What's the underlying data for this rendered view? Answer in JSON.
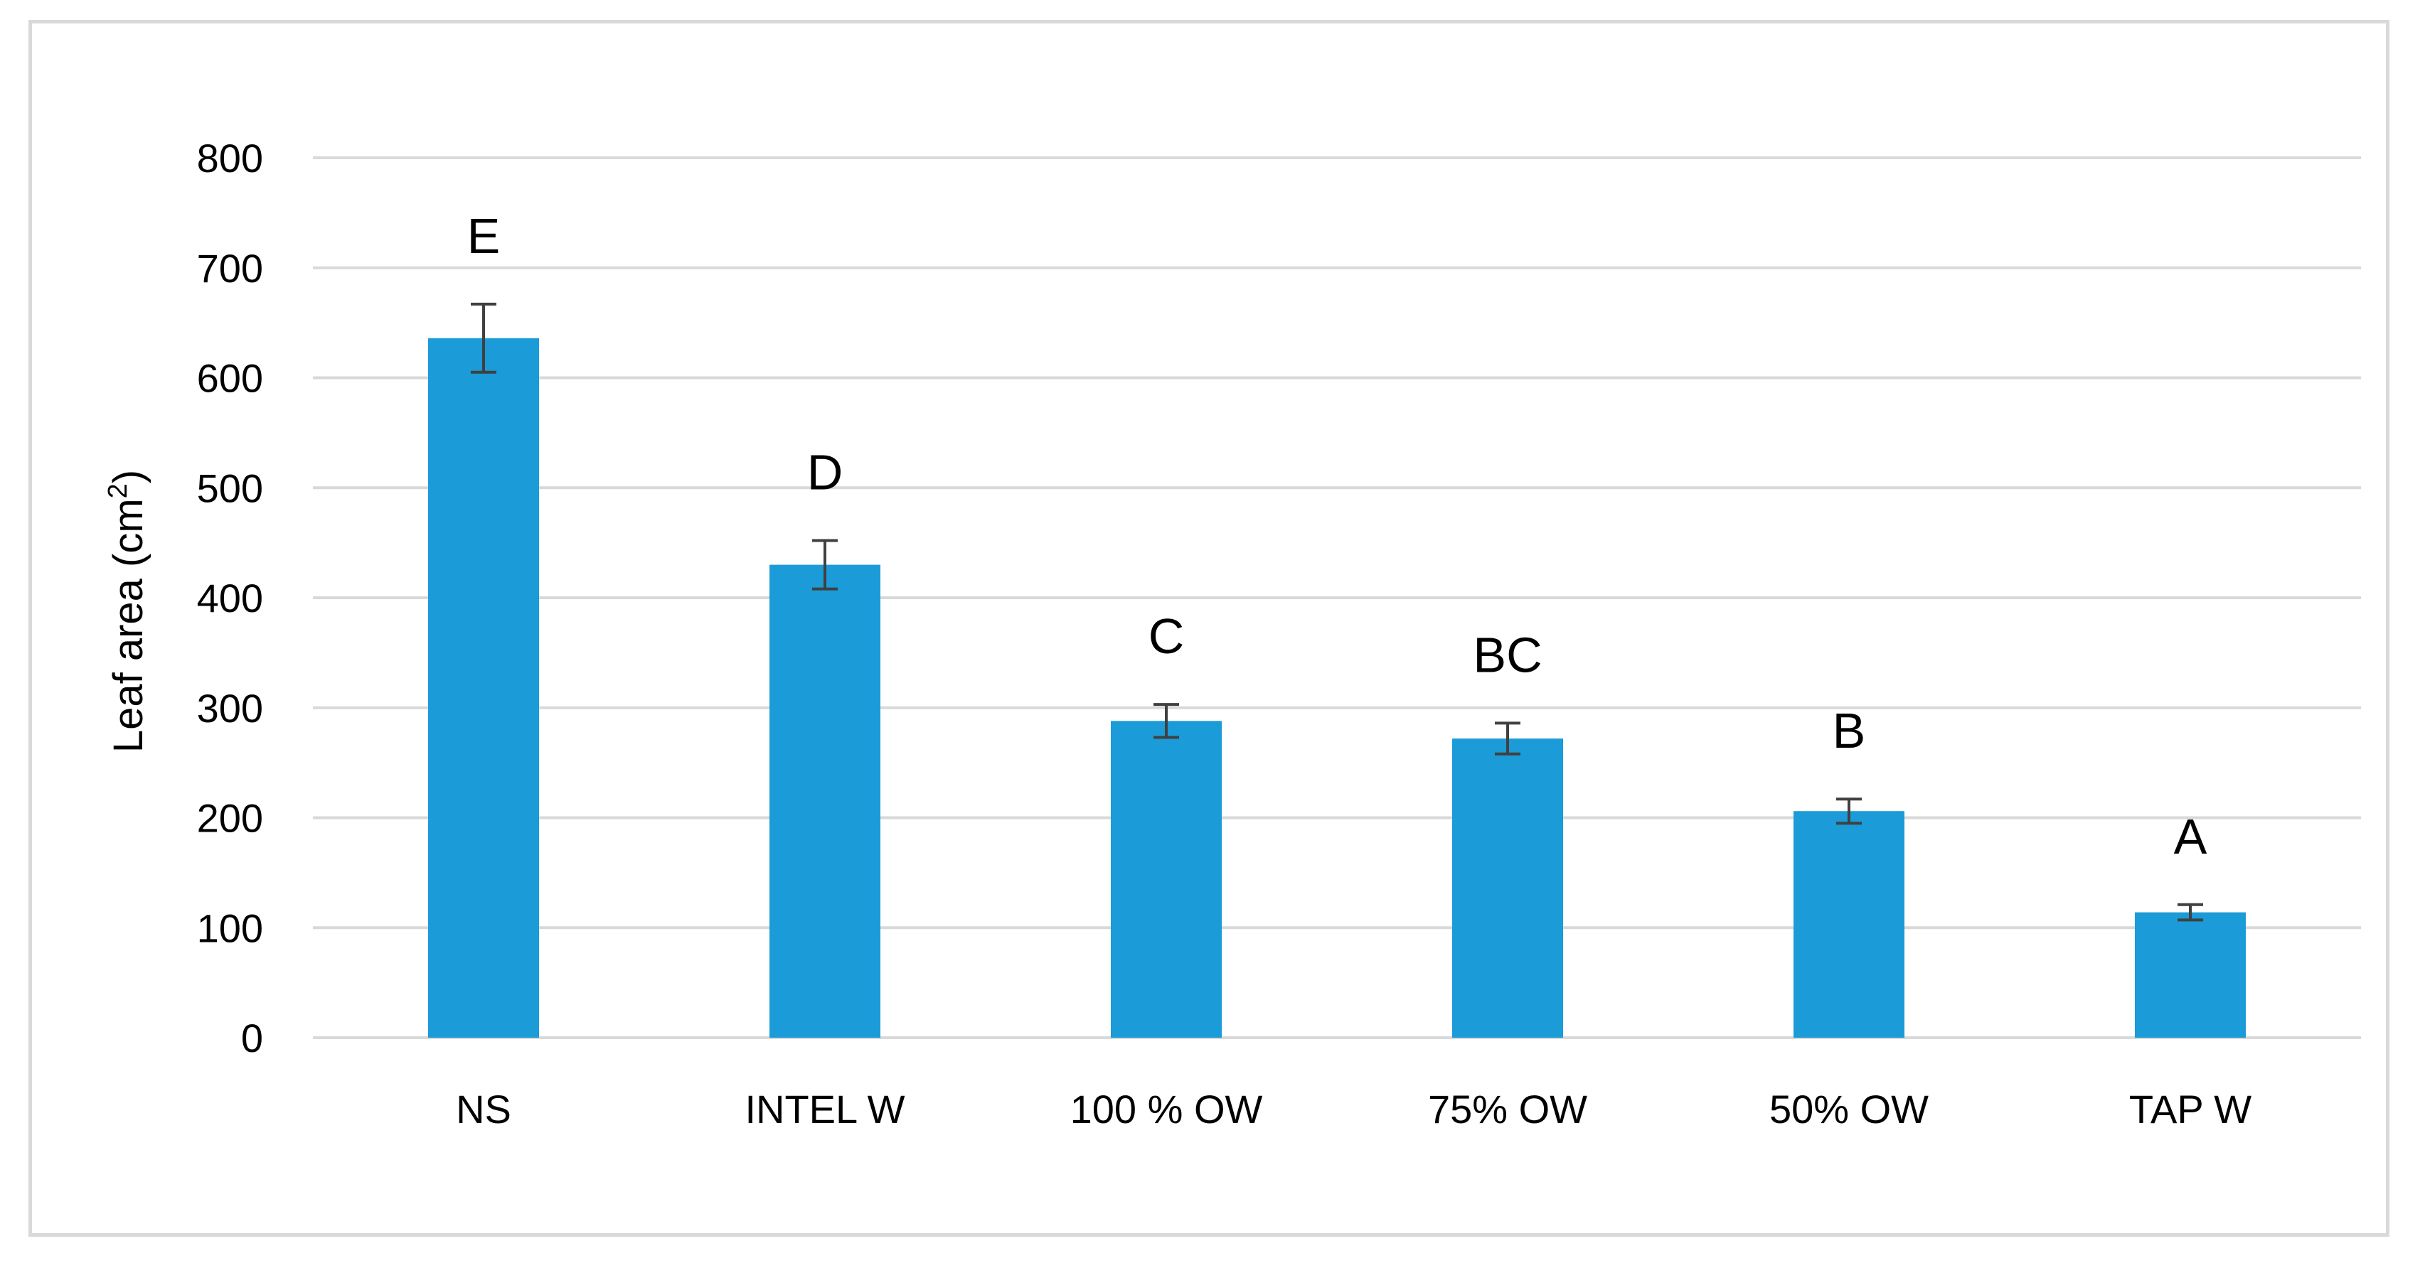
{
  "chart_data": {
    "type": "bar",
    "categories": [
      "NS",
      "INTEL W",
      "100 % OW",
      "75% OW",
      "50% OW",
      "TAP W"
    ],
    "values": [
      636,
      430,
      288,
      272,
      206,
      114
    ],
    "error": [
      31,
      22,
      15,
      14,
      11,
      7
    ],
    "significance": [
      "E",
      "D",
      "C",
      "BC",
      "B",
      "A"
    ],
    "ylabel": "Leaf area (cm²)",
    "ylabel_base": "Leaf area (cm",
    "ylabel_sup": "2",
    "ylabel_end": ")",
    "ylim": [
      0,
      800
    ],
    "yticks": [
      0,
      100,
      200,
      300,
      400,
      500,
      600,
      700,
      800
    ],
    "grid": true,
    "bar_color": "#1b9bd7",
    "gridline_color": "#d9d9d9",
    "errorbar_color": "#404040"
  }
}
